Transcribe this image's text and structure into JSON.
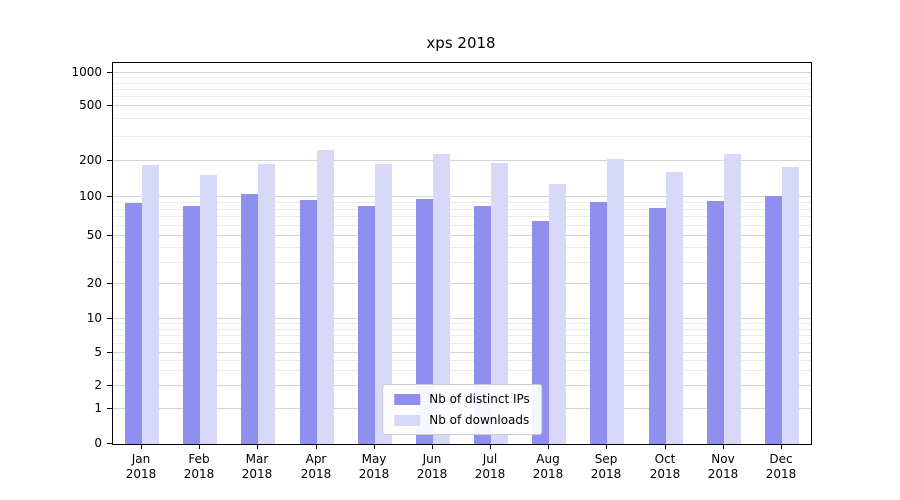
{
  "chart_data": {
    "type": "bar",
    "title": "xps 2018",
    "categories": [
      "Jan",
      "Feb",
      "Mar",
      "Apr",
      "May",
      "Jun",
      "Jul",
      "Aug",
      "Sep",
      "Oct",
      "Nov",
      "Dec"
    ],
    "year_label": "2018",
    "series": [
      {
        "name": "Nb of distinct IPs",
        "color": "#8f8fee",
        "values": [
          90,
          86,
          107,
          95,
          86,
          97,
          86,
          65,
          91,
          83,
          93,
          103
        ]
      },
      {
        "name": "Nb of downloads",
        "color": "#d8d8f9",
        "values": [
          185,
          152,
          190,
          240,
          188,
          225,
          192,
          128,
          205,
          163,
          225,
          178
        ]
      }
    ],
    "yaxis": {
      "scale": "symlog",
      "ticks": [
        0,
        1,
        2,
        5,
        10,
        20,
        50,
        100,
        200,
        500,
        1000
      ],
      "minor_ticks": [
        3,
        4,
        6,
        7,
        8,
        9,
        30,
        40,
        60,
        70,
        80,
        90,
        300,
        400,
        600,
        700,
        800,
        900
      ],
      "ylim": [
        0,
        1000
      ]
    },
    "legend": {
      "position": "lower center",
      "entries": [
        "Nb of distinct IPs",
        "Nb of downloads"
      ]
    },
    "grid": true
  }
}
